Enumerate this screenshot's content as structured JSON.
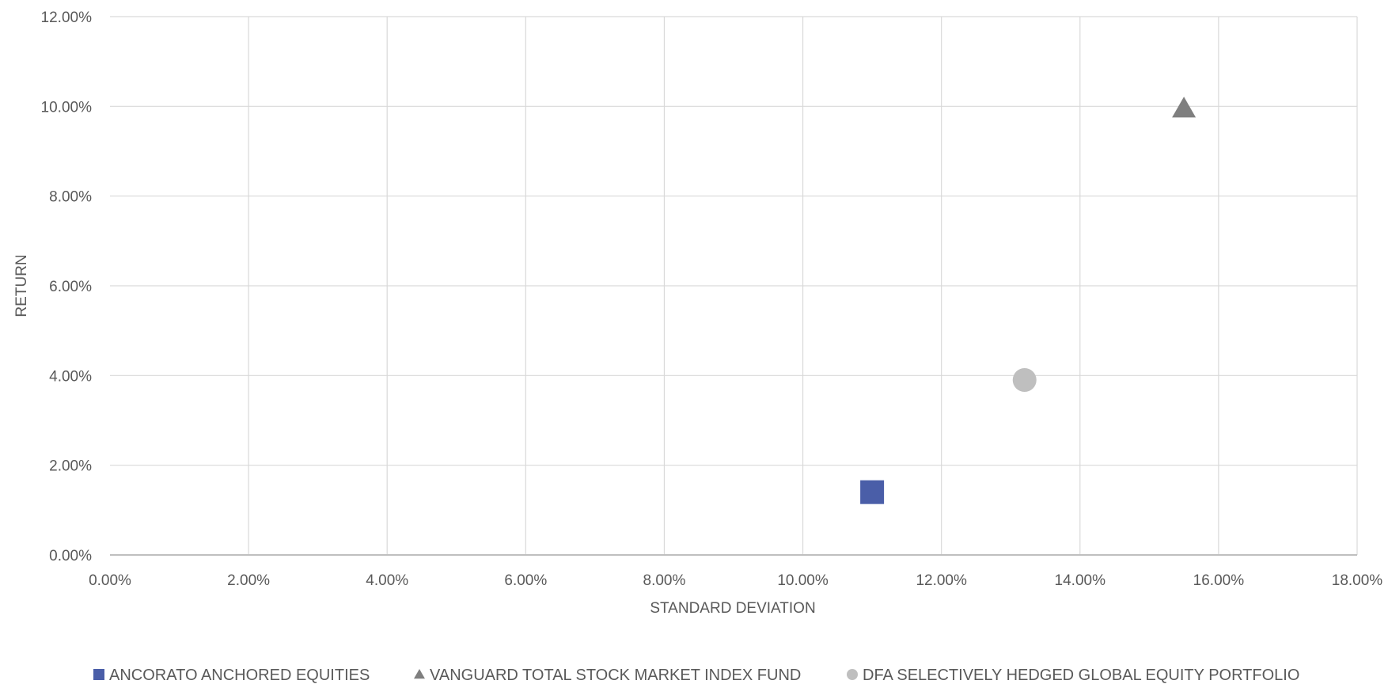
{
  "chart_data": {
    "type": "scatter",
    "xlabel": "STANDARD DEVIATION",
    "ylabel": "RETURN",
    "xlim": [
      0,
      0.18
    ],
    "ylim": [
      0,
      0.12
    ],
    "x_ticks": [
      "0.00%",
      "2.00%",
      "4.00%",
      "6.00%",
      "8.00%",
      "10.00%",
      "12.00%",
      "14.00%",
      "16.00%",
      "18.00%"
    ],
    "y_ticks": [
      "0.00%",
      "2.00%",
      "4.00%",
      "6.00%",
      "8.00%",
      "10.00%",
      "12.00%"
    ],
    "grid": true,
    "legend_position": "bottom",
    "series": [
      {
        "name": "ANCORATO ANCHORED EQUITIES",
        "marker": "square",
        "color": "#4a5ea8",
        "points": [
          {
            "x": 0.11,
            "y": 0.014
          }
        ]
      },
      {
        "name": "VANGUARD TOTAL STOCK MARKET INDEX FUND",
        "marker": "triangle",
        "color": "#7f7f7f",
        "points": [
          {
            "x": 0.155,
            "y": 0.0995
          }
        ]
      },
      {
        "name": "DFA SELECTIVELY HEDGED GLOBAL EQUITY PORTFOLIO",
        "marker": "circle",
        "color": "#bfbfbf",
        "points": [
          {
            "x": 0.132,
            "y": 0.039
          }
        ]
      }
    ]
  }
}
